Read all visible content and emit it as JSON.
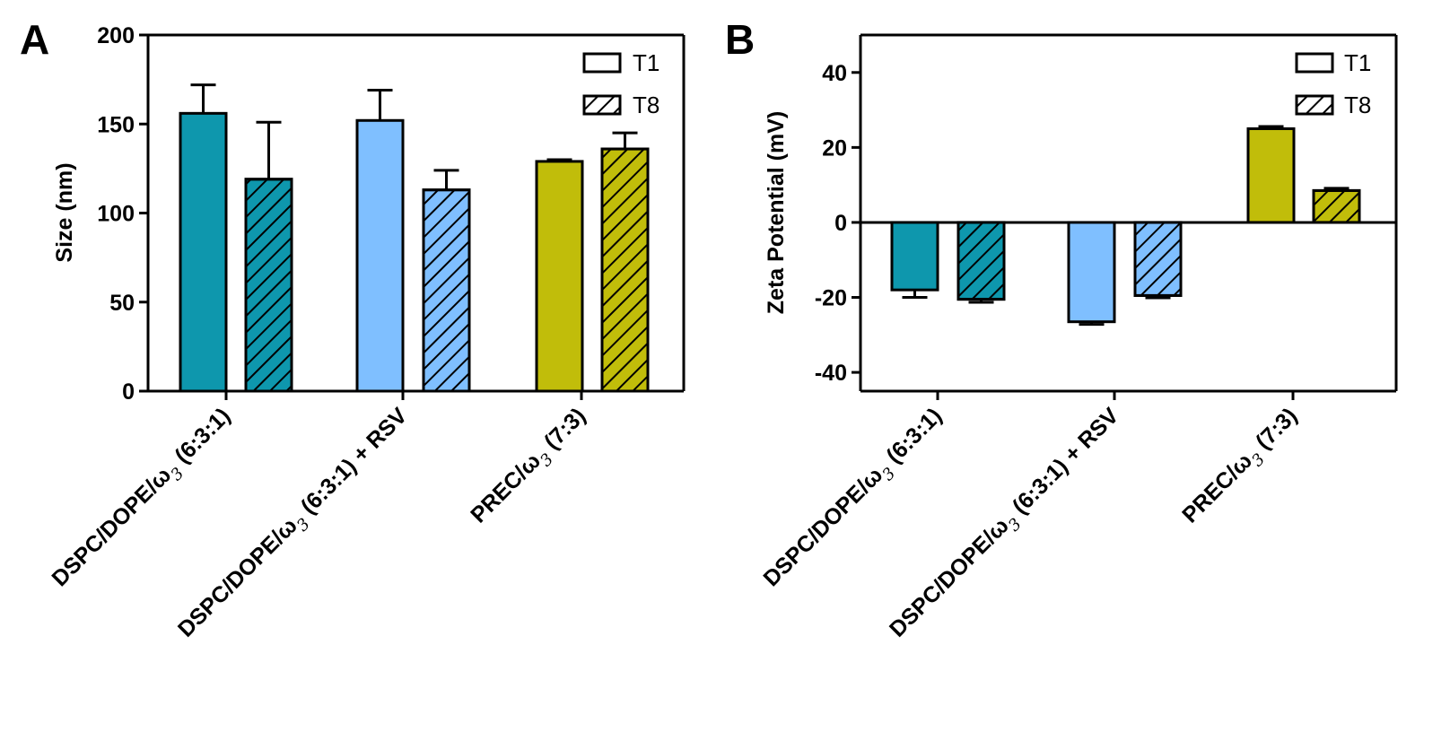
{
  "colors": {
    "group1": "#0e97ad",
    "group2": "#7fbfff",
    "group3": "#c1bd0a",
    "stroke": "#000000"
  },
  "legend": [
    {
      "label": "T1",
      "pattern": "solid"
    },
    {
      "label": "T8",
      "pattern": "hatched"
    }
  ],
  "categories": [
    {
      "main": "DSPC/DOPE/ω",
      "sub": "3",
      "tail": " (6:3:1)"
    },
    {
      "main": "DSPC/DOPE/ω",
      "sub": "3",
      "tail": " (6:3:1) + RSV"
    },
    {
      "main": "PREC/ω",
      "sub": "3",
      "tail": " (7:3)"
    }
  ],
  "chart_data": [
    {
      "type": "bar",
      "panel": "A",
      "ylabel": "Size (nm)",
      "ylim": [
        0,
        200
      ],
      "yticks": [
        0,
        50,
        100,
        150,
        200
      ],
      "categories": [
        "DSPC/DOPE/ω3 (6:3:1)",
        "DSPC/DOPE/ω3 (6:3:1) + RSV",
        "PREC/ω3 (7:3)"
      ],
      "series": [
        {
          "name": "T1",
          "values": [
            156,
            152,
            129
          ],
          "errors": [
            16,
            17,
            1
          ]
        },
        {
          "name": "T8",
          "values": [
            119,
            113,
            136
          ],
          "errors": [
            32,
            11,
            9
          ]
        }
      ]
    },
    {
      "type": "bar",
      "panel": "B",
      "ylabel": "Zeta Potential (mV)",
      "ylim": [
        -45,
        50
      ],
      "yticks": [
        -40,
        -20,
        0,
        20,
        40
      ],
      "categories": [
        "DSPC/DOPE/ω3 (6:3:1)",
        "DSPC/DOPE/ω3 (6:3:1) + RSV",
        "PREC/ω3 (7:3)"
      ],
      "series": [
        {
          "name": "T1",
          "values": [
            -18,
            -26.5,
            25
          ],
          "errors": [
            2,
            0.7,
            0.6
          ]
        },
        {
          "name": "T8",
          "values": [
            -20.5,
            -19.5,
            8.5
          ],
          "errors": [
            0.8,
            0.6,
            0.6
          ]
        }
      ]
    }
  ]
}
